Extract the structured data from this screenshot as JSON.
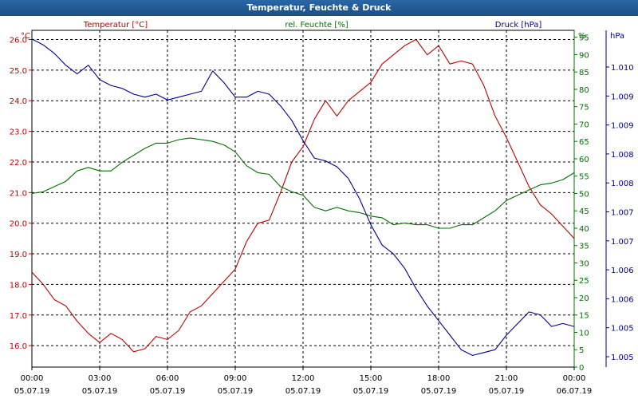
{
  "window": {
    "title": "Temperatur, Feuchte & Druck"
  },
  "chart_data": {
    "type": "line",
    "title": "Temperatur, Feuchte & Druck",
    "grid": true,
    "colors": {
      "temperature": "#c00000",
      "humidity": "#007000",
      "pressure": "#000090"
    },
    "x_ticks": [
      {
        "hour": 0,
        "time": "00:00",
        "date": "05.07.19"
      },
      {
        "hour": 3,
        "time": "03:00",
        "date": "05.07.19"
      },
      {
        "hour": 6,
        "time": "06:00",
        "date": "05.07.19"
      },
      {
        "hour": 9,
        "time": "09:00",
        "date": "05.07.19"
      },
      {
        "hour": 12,
        "time": "12:00",
        "date": "05.07.19"
      },
      {
        "hour": 15,
        "time": "15:00",
        "date": "05.07.19"
      },
      {
        "hour": 18,
        "time": "18:00",
        "date": "05.07.19"
      },
      {
        "hour": 21,
        "time": "21:00",
        "date": "05.07.19"
      },
      {
        "hour": 24,
        "time": "00:00",
        "date": "06.07.19"
      }
    ],
    "x_range": [
      0,
      24
    ],
    "axes": {
      "temperature": {
        "label": "Temperatur [°C]",
        "unit": "°C",
        "range": [
          15.3,
          26.3
        ],
        "ticks": [
          "16.0",
          "17.0",
          "18.0",
          "19.0",
          "20.0",
          "21.0",
          "22.0",
          "23.0",
          "24.0",
          "25.0",
          "26.0"
        ]
      },
      "humidity": {
        "label": "rel. Feuchte [%]",
        "unit": "%",
        "range": [
          0,
          97
        ],
        "ticks": [
          "0",
          "5",
          "10",
          "15",
          "20",
          "25",
          "30",
          "35",
          "40",
          "45",
          "50",
          "55",
          "60",
          "65",
          "70",
          "75",
          "80",
          "85",
          "90",
          "95"
        ]
      },
      "pressure": {
        "label": "Druck [hPa]",
        "unit": "hPa",
        "range": [
          1004.8,
          1010.6
        ],
        "ticks": [
          "1.005",
          "1.005",
          "1.006",
          "1.006",
          "1.007",
          "1.007",
          "1.008",
          "1.008",
          "1.009",
          "1.009",
          "1.010"
        ]
      }
    },
    "series": [
      {
        "name": "Temperatur [°C]",
        "key": "temperature",
        "x": [
          0,
          0.5,
          1,
          1.5,
          2,
          2.5,
          3,
          3.5,
          4,
          4.5,
          5,
          5.5,
          6,
          6.5,
          7,
          7.5,
          8,
          8.5,
          9,
          9.5,
          10,
          10.5,
          11,
          11.5,
          12,
          12.5,
          13,
          13.5,
          14,
          14.5,
          15,
          15.5,
          16,
          16.5,
          17,
          17.5,
          18,
          18.5,
          19,
          19.5,
          20,
          20.5,
          21,
          21.5,
          22,
          22.5,
          23,
          23.5,
          24
        ],
        "values": [
          18.4,
          18.0,
          17.5,
          17.3,
          16.8,
          16.4,
          16.1,
          16.4,
          16.2,
          15.8,
          15.9,
          16.3,
          16.2,
          16.5,
          17.1,
          17.3,
          17.7,
          18.1,
          18.5,
          19.4,
          20.0,
          20.1,
          21.0,
          22.0,
          22.5,
          23.4,
          24.0,
          23.5,
          24.0,
          24.3,
          24.6,
          25.2,
          25.5,
          25.8,
          26.0,
          25.5,
          25.8,
          25.2,
          25.3,
          25.2,
          24.5,
          23.5,
          22.8,
          22.0,
          21.2,
          20.6,
          20.3,
          19.9,
          19.5
        ]
      },
      {
        "name": "rel. Feuchte [%]",
        "key": "humidity",
        "x": [
          0,
          0.5,
          1,
          1.5,
          2,
          2.5,
          3,
          3.5,
          4,
          4.5,
          5,
          5.5,
          6,
          6.5,
          7,
          7.5,
          8,
          8.5,
          9,
          9.5,
          10,
          10.5,
          11,
          11.5,
          12,
          12.5,
          13,
          13.5,
          14,
          14.5,
          15,
          15.5,
          16,
          16.5,
          17,
          17.5,
          18,
          18.5,
          19,
          19.5,
          20,
          20.5,
          21,
          21.5,
          22,
          22.5,
          23,
          23.5,
          24
        ],
        "values": [
          50,
          50.5,
          52,
          53.5,
          56.5,
          57.5,
          56.5,
          56.5,
          59,
          61,
          63,
          64.5,
          64.5,
          65.5,
          66,
          65.5,
          65,
          64,
          62,
          58,
          56,
          55.5,
          52,
          50.5,
          49.5,
          46,
          45,
          46,
          45,
          44.5,
          43.5,
          43,
          41,
          41.5,
          41,
          41,
          40,
          40,
          41,
          41,
          43,
          45,
          48,
          49.5,
          51,
          52.5,
          53,
          54,
          56
        ]
      },
      {
        "name": "Druck [hPa]",
        "key": "pressure",
        "x": [
          0,
          0.5,
          1,
          1.5,
          2,
          2.5,
          3,
          3.5,
          4,
          4.5,
          5,
          5.5,
          6,
          6.5,
          7,
          7.5,
          8,
          8.5,
          9,
          9.5,
          10,
          10.5,
          11,
          11.5,
          12,
          12.5,
          13,
          13.5,
          14,
          14.5,
          15,
          15.5,
          16,
          16.5,
          17,
          17.5,
          18,
          18.5,
          19,
          19.5,
          20,
          20.5,
          21,
          21.5,
          22,
          22.5,
          23,
          23.5,
          24
        ],
        "values": [
          1010.45,
          1010.35,
          1010.2,
          1010.0,
          1009.85,
          1010.0,
          1009.75,
          1009.65,
          1009.6,
          1009.5,
          1009.45,
          1009.5,
          1009.4,
          1009.45,
          1009.5,
          1009.55,
          1009.9,
          1009.7,
          1009.45,
          1009.45,
          1009.55,
          1009.5,
          1009.3,
          1009.05,
          1008.7,
          1008.4,
          1008.35,
          1008.25,
          1008.05,
          1007.7,
          1007.25,
          1006.9,
          1006.75,
          1006.5,
          1006.15,
          1005.85,
          1005.6,
          1005.35,
          1005.1,
          1005.0,
          1005.05,
          1005.1,
          1005.35,
          1005.55,
          1005.75,
          1005.7,
          1005.5,
          1005.55,
          1005.5
        ]
      }
    ]
  }
}
